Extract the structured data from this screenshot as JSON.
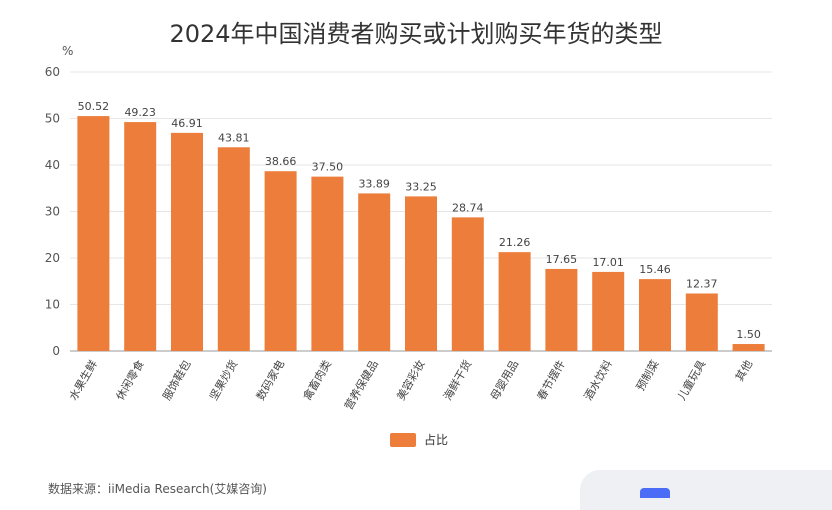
{
  "chart_data": {
    "type": "bar",
    "title": "2024年中国消费者购买或计划购买年货的类型",
    "ylabel": "%",
    "ylim": [
      0,
      60
    ],
    "yticks": [
      0,
      10,
      20,
      30,
      40,
      50,
      60
    ],
    "grid": true,
    "legend_position": "bottom-center",
    "categories": [
      "水果生鲜",
      "休闲零食",
      "服饰鞋包",
      "坚果炒货",
      "数码家电",
      "禽畜肉类",
      "营养保健品",
      "美容彩妆",
      "海鲜干货",
      "母婴用品",
      "春节摆件",
      "酒水饮料",
      "预制菜",
      "儿童玩具",
      "其他"
    ],
    "series": [
      {
        "name": "占比",
        "color": "#ED7D3A",
        "values": [
          50.52,
          49.23,
          46.91,
          43.81,
          38.66,
          37.5,
          33.89,
          33.25,
          28.74,
          21.26,
          17.65,
          17.01,
          15.46,
          12.37,
          1.5
        ],
        "value_labels": [
          "50.52",
          "49.23",
          "46.91",
          "43.81",
          "38.66",
          "37.50",
          "33.89",
          "33.25",
          "28.74",
          "21.26",
          "17.65",
          "17.01",
          "15.46",
          "12.37",
          "1.50"
        ]
      }
    ]
  },
  "source": "数据来源：iiMedia Research(艾媒咨询)"
}
